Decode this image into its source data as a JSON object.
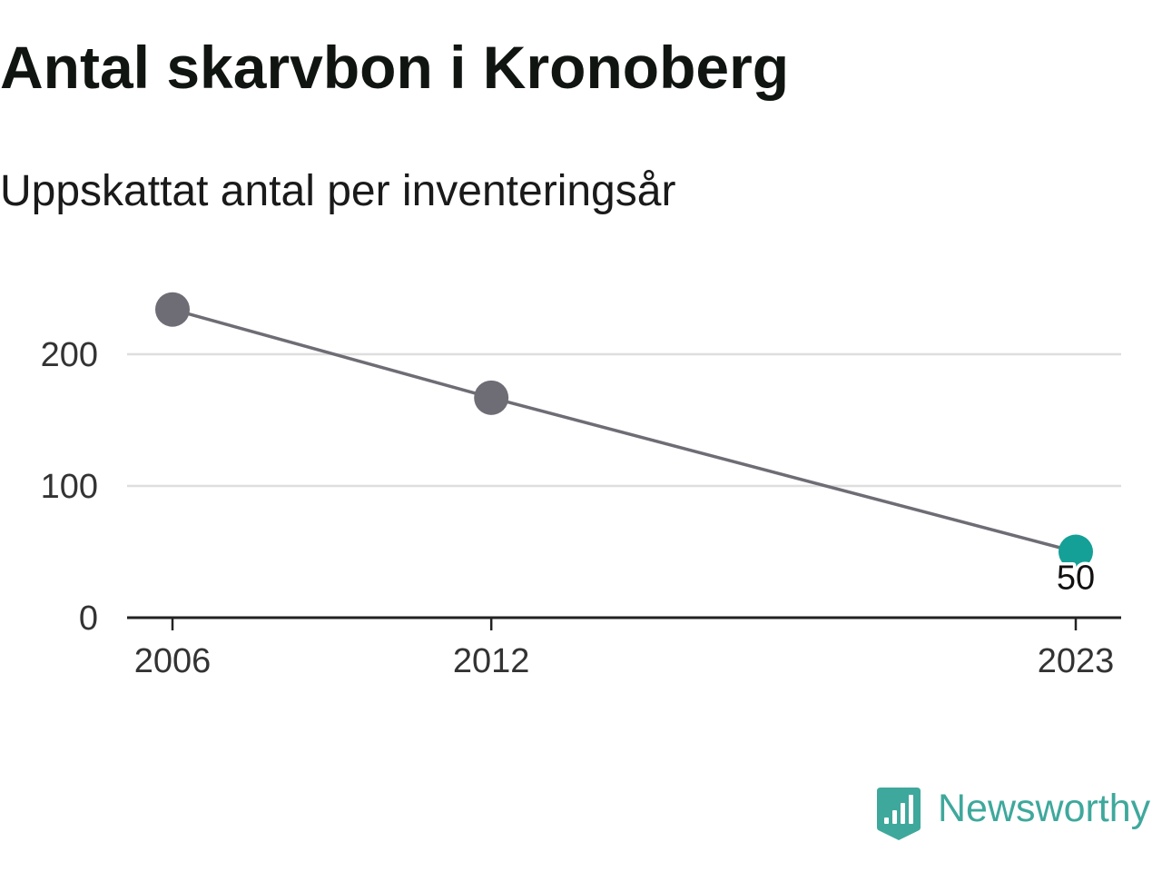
{
  "chart_data": {
    "type": "line",
    "title": "Antal skarvbon i Kronoberg",
    "subtitle": "Uppskattat antal per inventeringsår",
    "xlabel": "",
    "ylabel": "",
    "x": [
      2006,
      2012,
      2023
    ],
    "series": [
      {
        "values": [
          234,
          167,
          50
        ]
      }
    ],
    "xlim": [
      2006,
      2023
    ],
    "ylim": [
      0,
      250
    ],
    "yticks": [
      0,
      100,
      200
    ],
    "grid": "horizontal",
    "legend": "none",
    "data_labels": [
      {
        "x": 2023,
        "text": "50"
      }
    ],
    "highlight_x": 2023,
    "colors": {
      "line": "#6e6d75",
      "point": "#6e6d75",
      "highlight": "#14a096",
      "grid": "#dedede",
      "axis": "#222222"
    }
  },
  "logo": {
    "text": "Newsworthy",
    "icon": "newsworthy-logo-icon",
    "color": "#3fa89c"
  }
}
